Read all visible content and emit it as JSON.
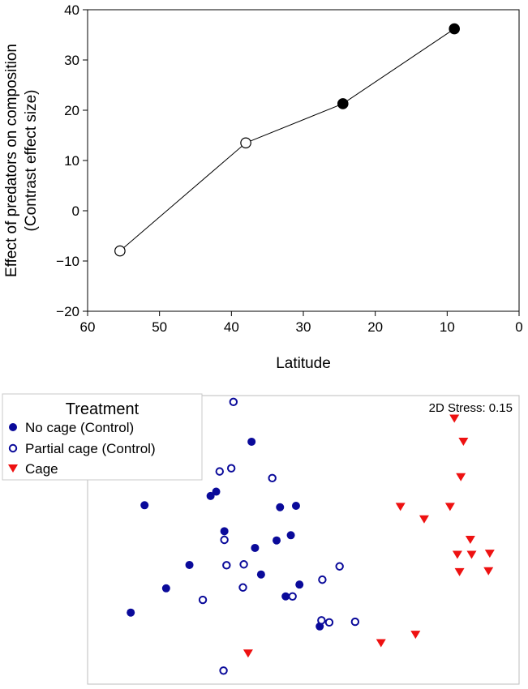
{
  "chart_data": [
    {
      "type": "line",
      "xlabel": "Latitude",
      "ylabel_lines": [
        "Effect of predators on composition",
        "(Contrast effect size)"
      ],
      "xlim": [
        60,
        0
      ],
      "ylim": [
        -20,
        40
      ],
      "x_ticks": [
        60,
        50,
        40,
        30,
        20,
        10,
        0
      ],
      "y_ticks": [
        -20,
        -10,
        0,
        10,
        20,
        30,
        40
      ],
      "x_tick_labels": [
        "60",
        "50",
        "40",
        "30",
        "20",
        "10",
        "0"
      ],
      "y_tick_labels": [
        "−20",
        "−10",
        "0",
        "10",
        "20",
        "30",
        "40"
      ],
      "points": [
        {
          "x": 55.5,
          "y": -8,
          "filled": false
        },
        {
          "x": 38,
          "y": 13.5,
          "filled": false
        },
        {
          "x": 24.5,
          "y": 21.3,
          "filled": true
        },
        {
          "x": 9,
          "y": 36.2,
          "filled": true
        }
      ],
      "grid": false
    },
    {
      "type": "scatter",
      "annotation": "2D Stress: 0.15",
      "legend": {
        "title": "Treatment",
        "placement": "top-left",
        "entries": [
          {
            "label": "No cage (Control)",
            "marker": "filled-circle",
            "color": "#0a0a9a"
          },
          {
            "label": "Partial cage (Control)",
            "marker": "open-circle",
            "color": "#0a0a9a"
          },
          {
            "label": "Cage",
            "marker": "down-triangle",
            "color": "#ee1111"
          }
        ]
      },
      "xlim": [
        0,
        100
      ],
      "ylim": [
        0,
        100
      ],
      "axes_ticks_shown": false,
      "series": [
        {
          "name": "No cage (Control)",
          "points": [
            [
              38.0,
              84.0
            ],
            [
              13.2,
              62.0
            ],
            [
              28.5,
              65.2
            ],
            [
              29.8,
              66.7
            ],
            [
              31.7,
              53.0
            ],
            [
              38.8,
              47.2
            ],
            [
              44.6,
              61.3
            ],
            [
              48.3,
              61.8
            ],
            [
              43.8,
              49.8
            ],
            [
              23.6,
              41.3
            ],
            [
              18.2,
              33.2
            ],
            [
              47.1,
              51.6
            ],
            [
              40.2,
              38.0
            ],
            [
              49.1,
              34.5
            ],
            [
              45.9,
              30.4
            ],
            [
              10.0,
              24.8
            ],
            [
              53.8,
              20.0
            ]
          ]
        },
        {
          "name": "Partial cage (Control)",
          "points": [
            [
              33.8,
              97.8
            ],
            [
              30.6,
              73.7
            ],
            [
              33.3,
              74.8
            ],
            [
              42.8,
              71.4
            ],
            [
              31.7,
              50.0
            ],
            [
              32.2,
              41.2
            ],
            [
              36.2,
              41.5
            ],
            [
              58.4,
              40.8
            ],
            [
              36.0,
              33.5
            ],
            [
              54.4,
              36.2
            ],
            [
              26.7,
              29.2
            ],
            [
              47.5,
              30.4
            ],
            [
              54.2,
              22.1
            ],
            [
              56.0,
              21.4
            ],
            [
              62.0,
              21.6
            ],
            [
              31.5,
              4.7
            ]
          ]
        },
        {
          "name": "Cage",
          "points": [
            [
              85.0,
              92.0
            ],
            [
              87.1,
              84.0
            ],
            [
              86.5,
              71.7
            ],
            [
              72.5,
              61.4
            ],
            [
              84.0,
              61.4
            ],
            [
              78.0,
              57.1
            ],
            [
              88.7,
              50.0
            ],
            [
              85.7,
              44.8
            ],
            [
              89.0,
              44.8
            ],
            [
              93.2,
              45.2
            ],
            [
              86.2,
              38.8
            ],
            [
              92.9,
              39.1
            ],
            [
              76.0,
              17.1
            ],
            [
              68.0,
              14.2
            ],
            [
              37.2,
              10.6
            ]
          ]
        }
      ]
    }
  ]
}
